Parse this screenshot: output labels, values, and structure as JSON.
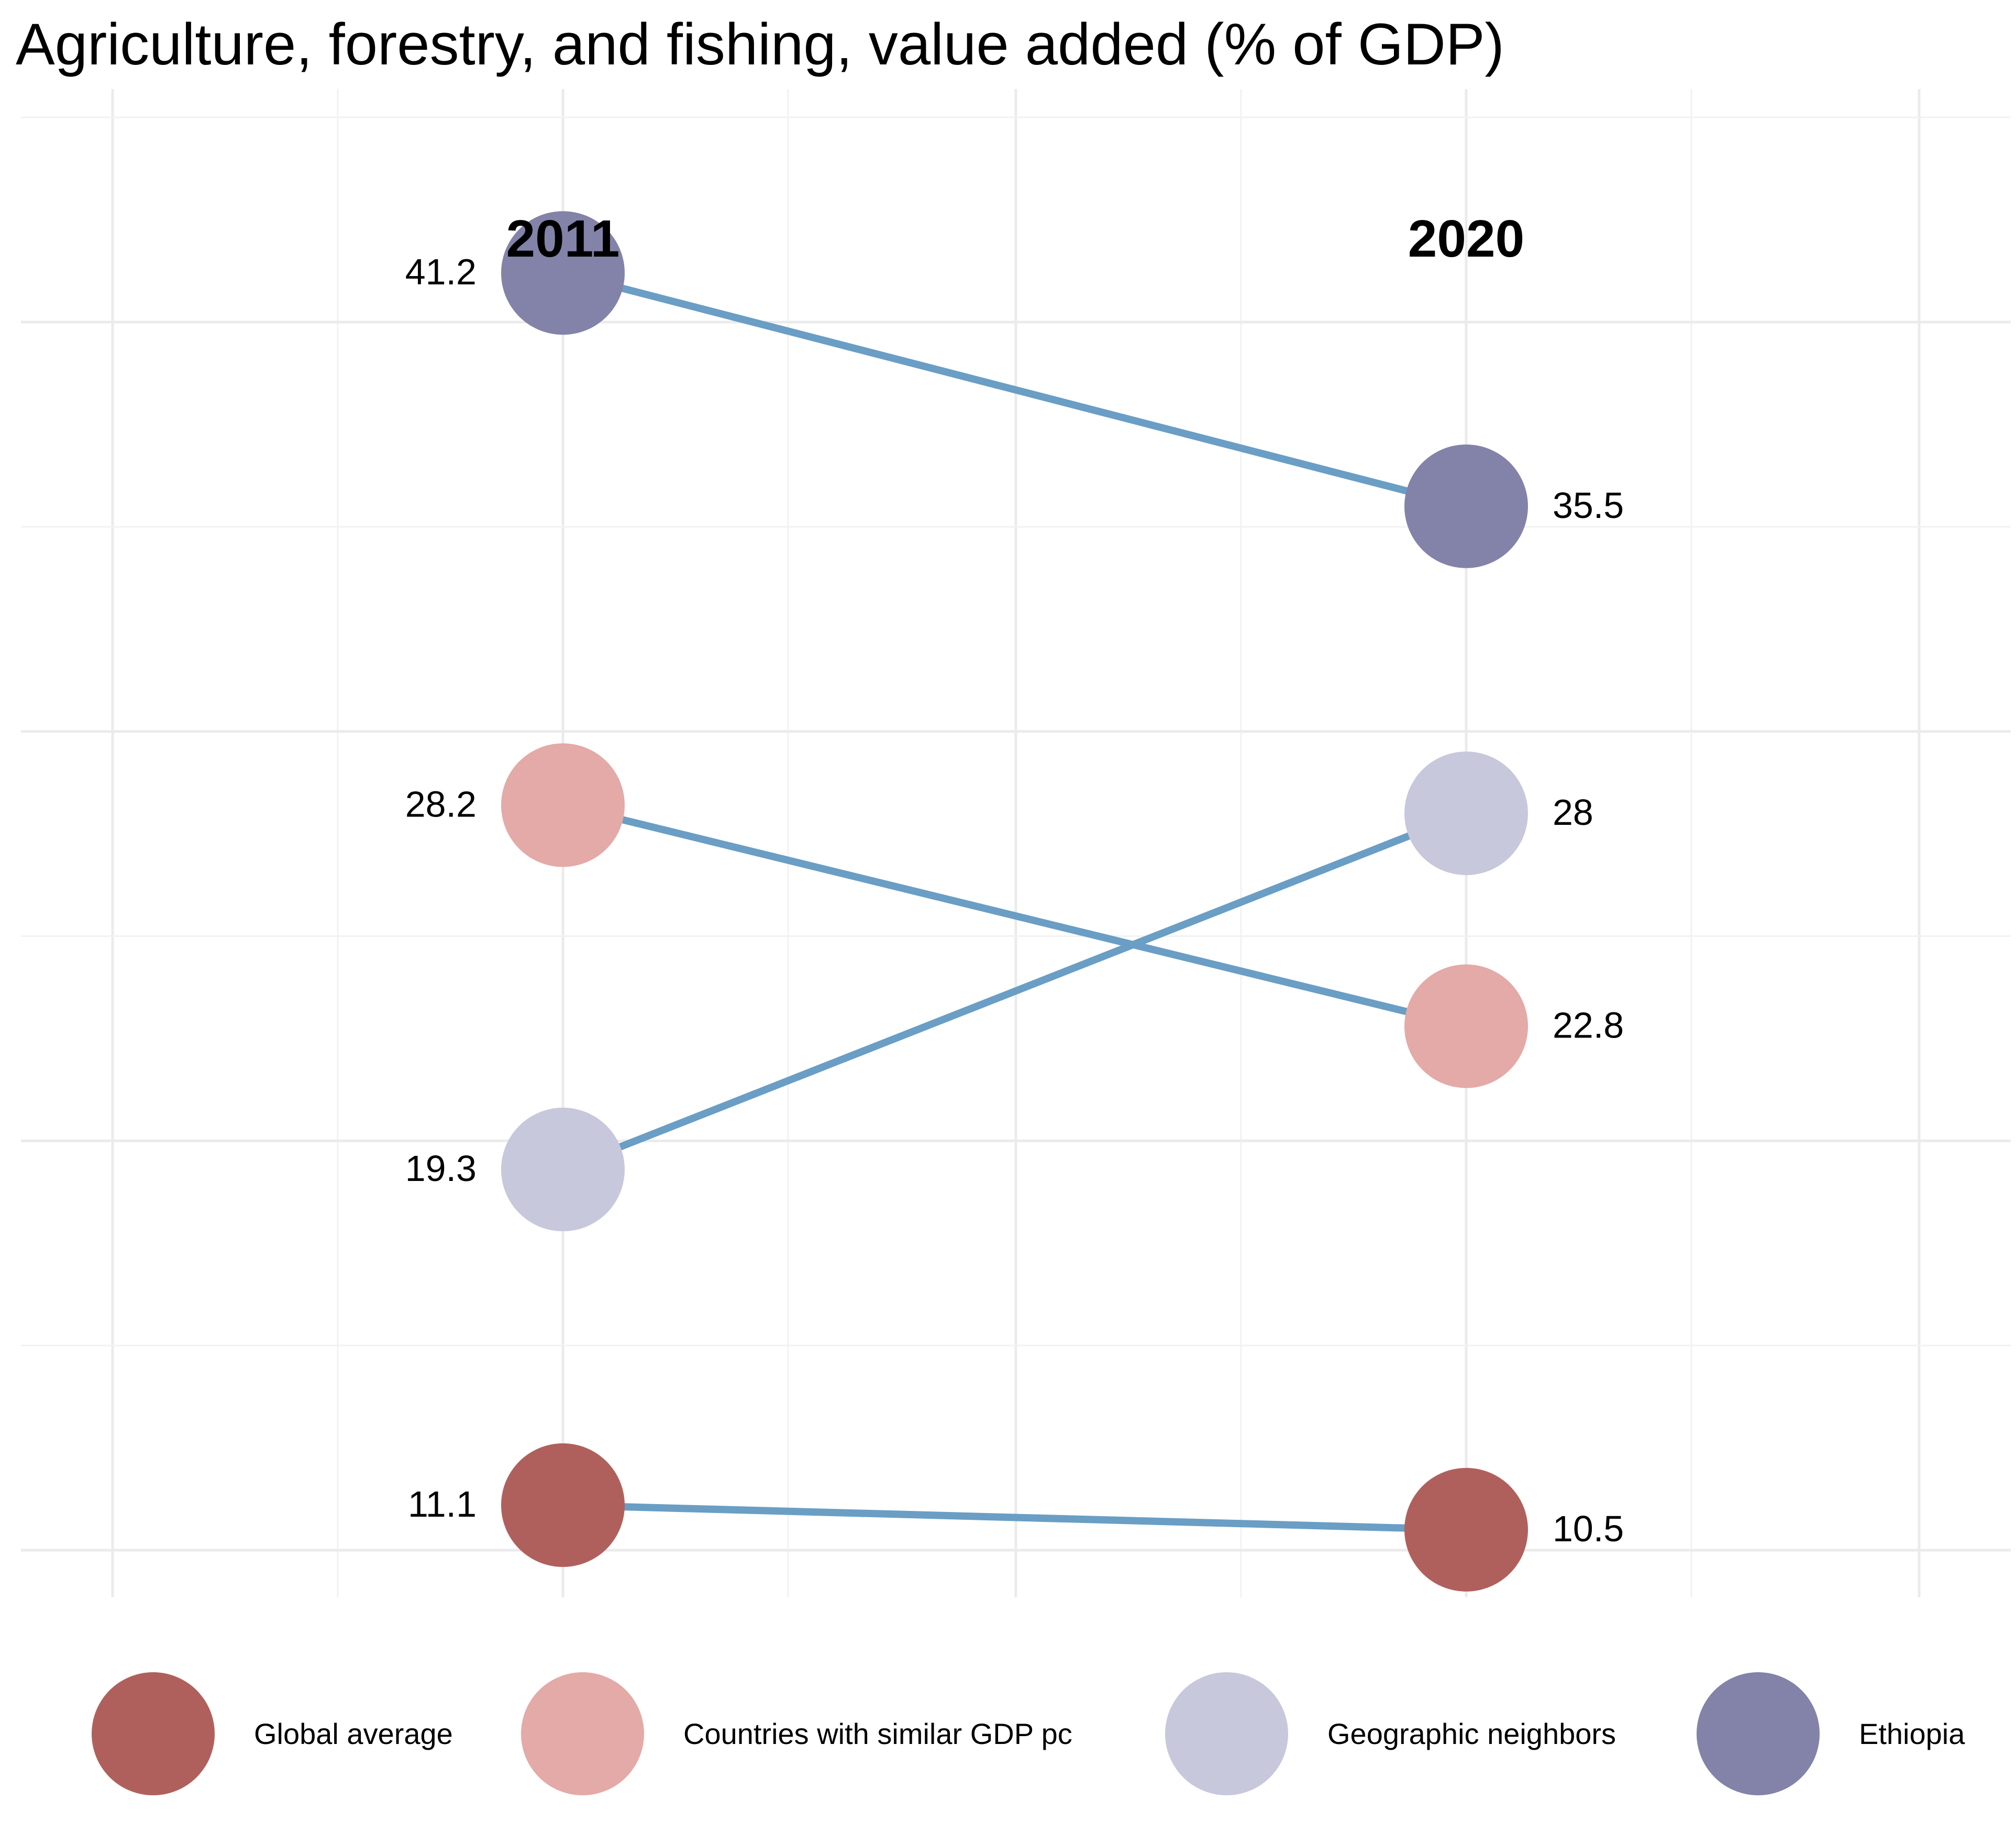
{
  "title": "Agriculture, forestry, and fishing, value added (% of GDP)",
  "chart_data": {
    "type": "slope",
    "x": [
      "2011",
      "2020"
    ],
    "series": [
      {
        "name": "Global average",
        "values": [
          11.1,
          10.5
        ],
        "labels": [
          "11.1",
          "10.5"
        ],
        "color": "#b0605c"
      },
      {
        "name": "Countries with similar GDP pc",
        "values": [
          28.2,
          22.8
        ],
        "labels": [
          "28.2",
          "22.8"
        ],
        "color": "#e3aaa7"
      },
      {
        "name": "Geographic neighbors",
        "values": [
          19.3,
          28
        ],
        "labels": [
          "19.3",
          "28"
        ],
        "color": "#c8c8dc"
      },
      {
        "name": "Ethiopia",
        "values": [
          41.2,
          35.5
        ],
        "labels": [
          "41.2",
          "35.5"
        ],
        "color": "#8383a9"
      }
    ],
    "line_color": "#6a9ec4",
    "ylim": [
      7.5,
      45
    ],
    "grid": true,
    "legend_position": "bottom"
  }
}
